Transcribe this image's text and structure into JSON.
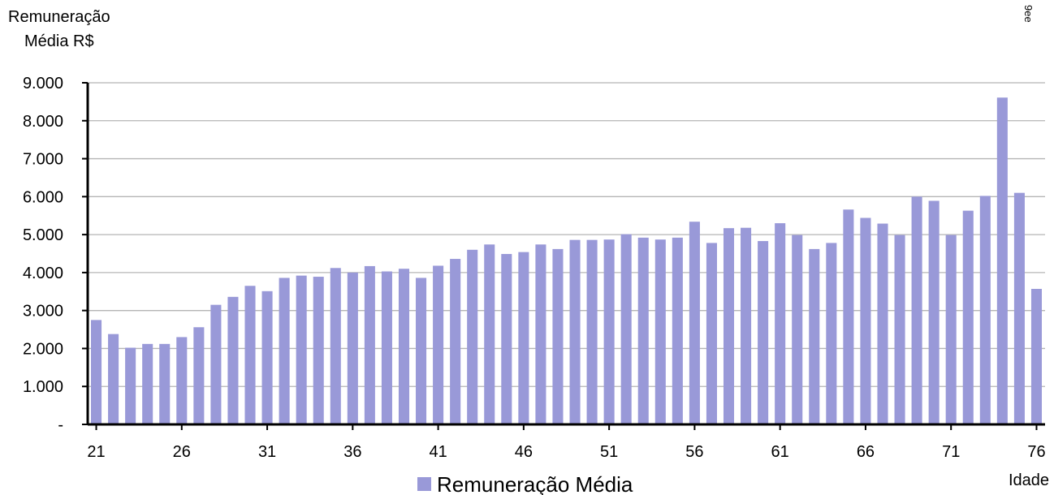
{
  "chart_data": {
    "type": "bar",
    "ylabel": [
      "Remuneração",
      "Média R$"
    ],
    "xlabel": "Idade",
    "corner_note": "9ee",
    "ylim": [
      0,
      9000
    ],
    "yticks": [
      0,
      1000,
      2000,
      3000,
      4000,
      5000,
      6000,
      7000,
      8000,
      9000
    ],
    "ytick_labels": [
      "-",
      "1.000",
      "2.000",
      "3.000",
      "4.000",
      "5.000",
      "6.000",
      "7.000",
      "8.000",
      "9.000"
    ],
    "xtick_labels": [
      "21",
      "26",
      "31",
      "36",
      "41",
      "46",
      "51",
      "56",
      "61",
      "66",
      "71",
      "76"
    ],
    "categories": [
      21,
      22,
      23,
      24,
      25,
      26,
      27,
      28,
      29,
      30,
      31,
      32,
      33,
      34,
      35,
      36,
      37,
      38,
      39,
      40,
      41,
      42,
      43,
      44,
      45,
      46,
      47,
      48,
      49,
      50,
      51,
      52,
      53,
      54,
      55,
      56,
      57,
      58,
      59,
      60,
      61,
      62,
      63,
      64,
      65,
      66,
      67,
      68,
      69,
      70,
      71,
      72,
      73,
      74,
      75,
      76
    ],
    "series": [
      {
        "name": "Remuneração Média",
        "color": "#9999d8",
        "values": [
          2750,
          2380,
          2020,
          2120,
          2120,
          2300,
          2560,
          3150,
          3360,
          3650,
          3510,
          3860,
          3920,
          3890,
          4120,
          4000,
          4170,
          4030,
          4100,
          3860,
          4180,
          4360,
          4600,
          4740,
          4490,
          4540,
          4740,
          4620,
          4860,
          4860,
          4870,
          5010,
          4920,
          4870,
          4920,
          5340,
          4780,
          5170,
          5180,
          4830,
          5300,
          4990,
          4620,
          4780,
          5660,
          5440,
          5290,
          4990,
          6000,
          5890,
          4990,
          5630,
          6020,
          8610,
          6100,
          3570
        ]
      }
    ],
    "grid": true,
    "legend": "bottom-center"
  }
}
